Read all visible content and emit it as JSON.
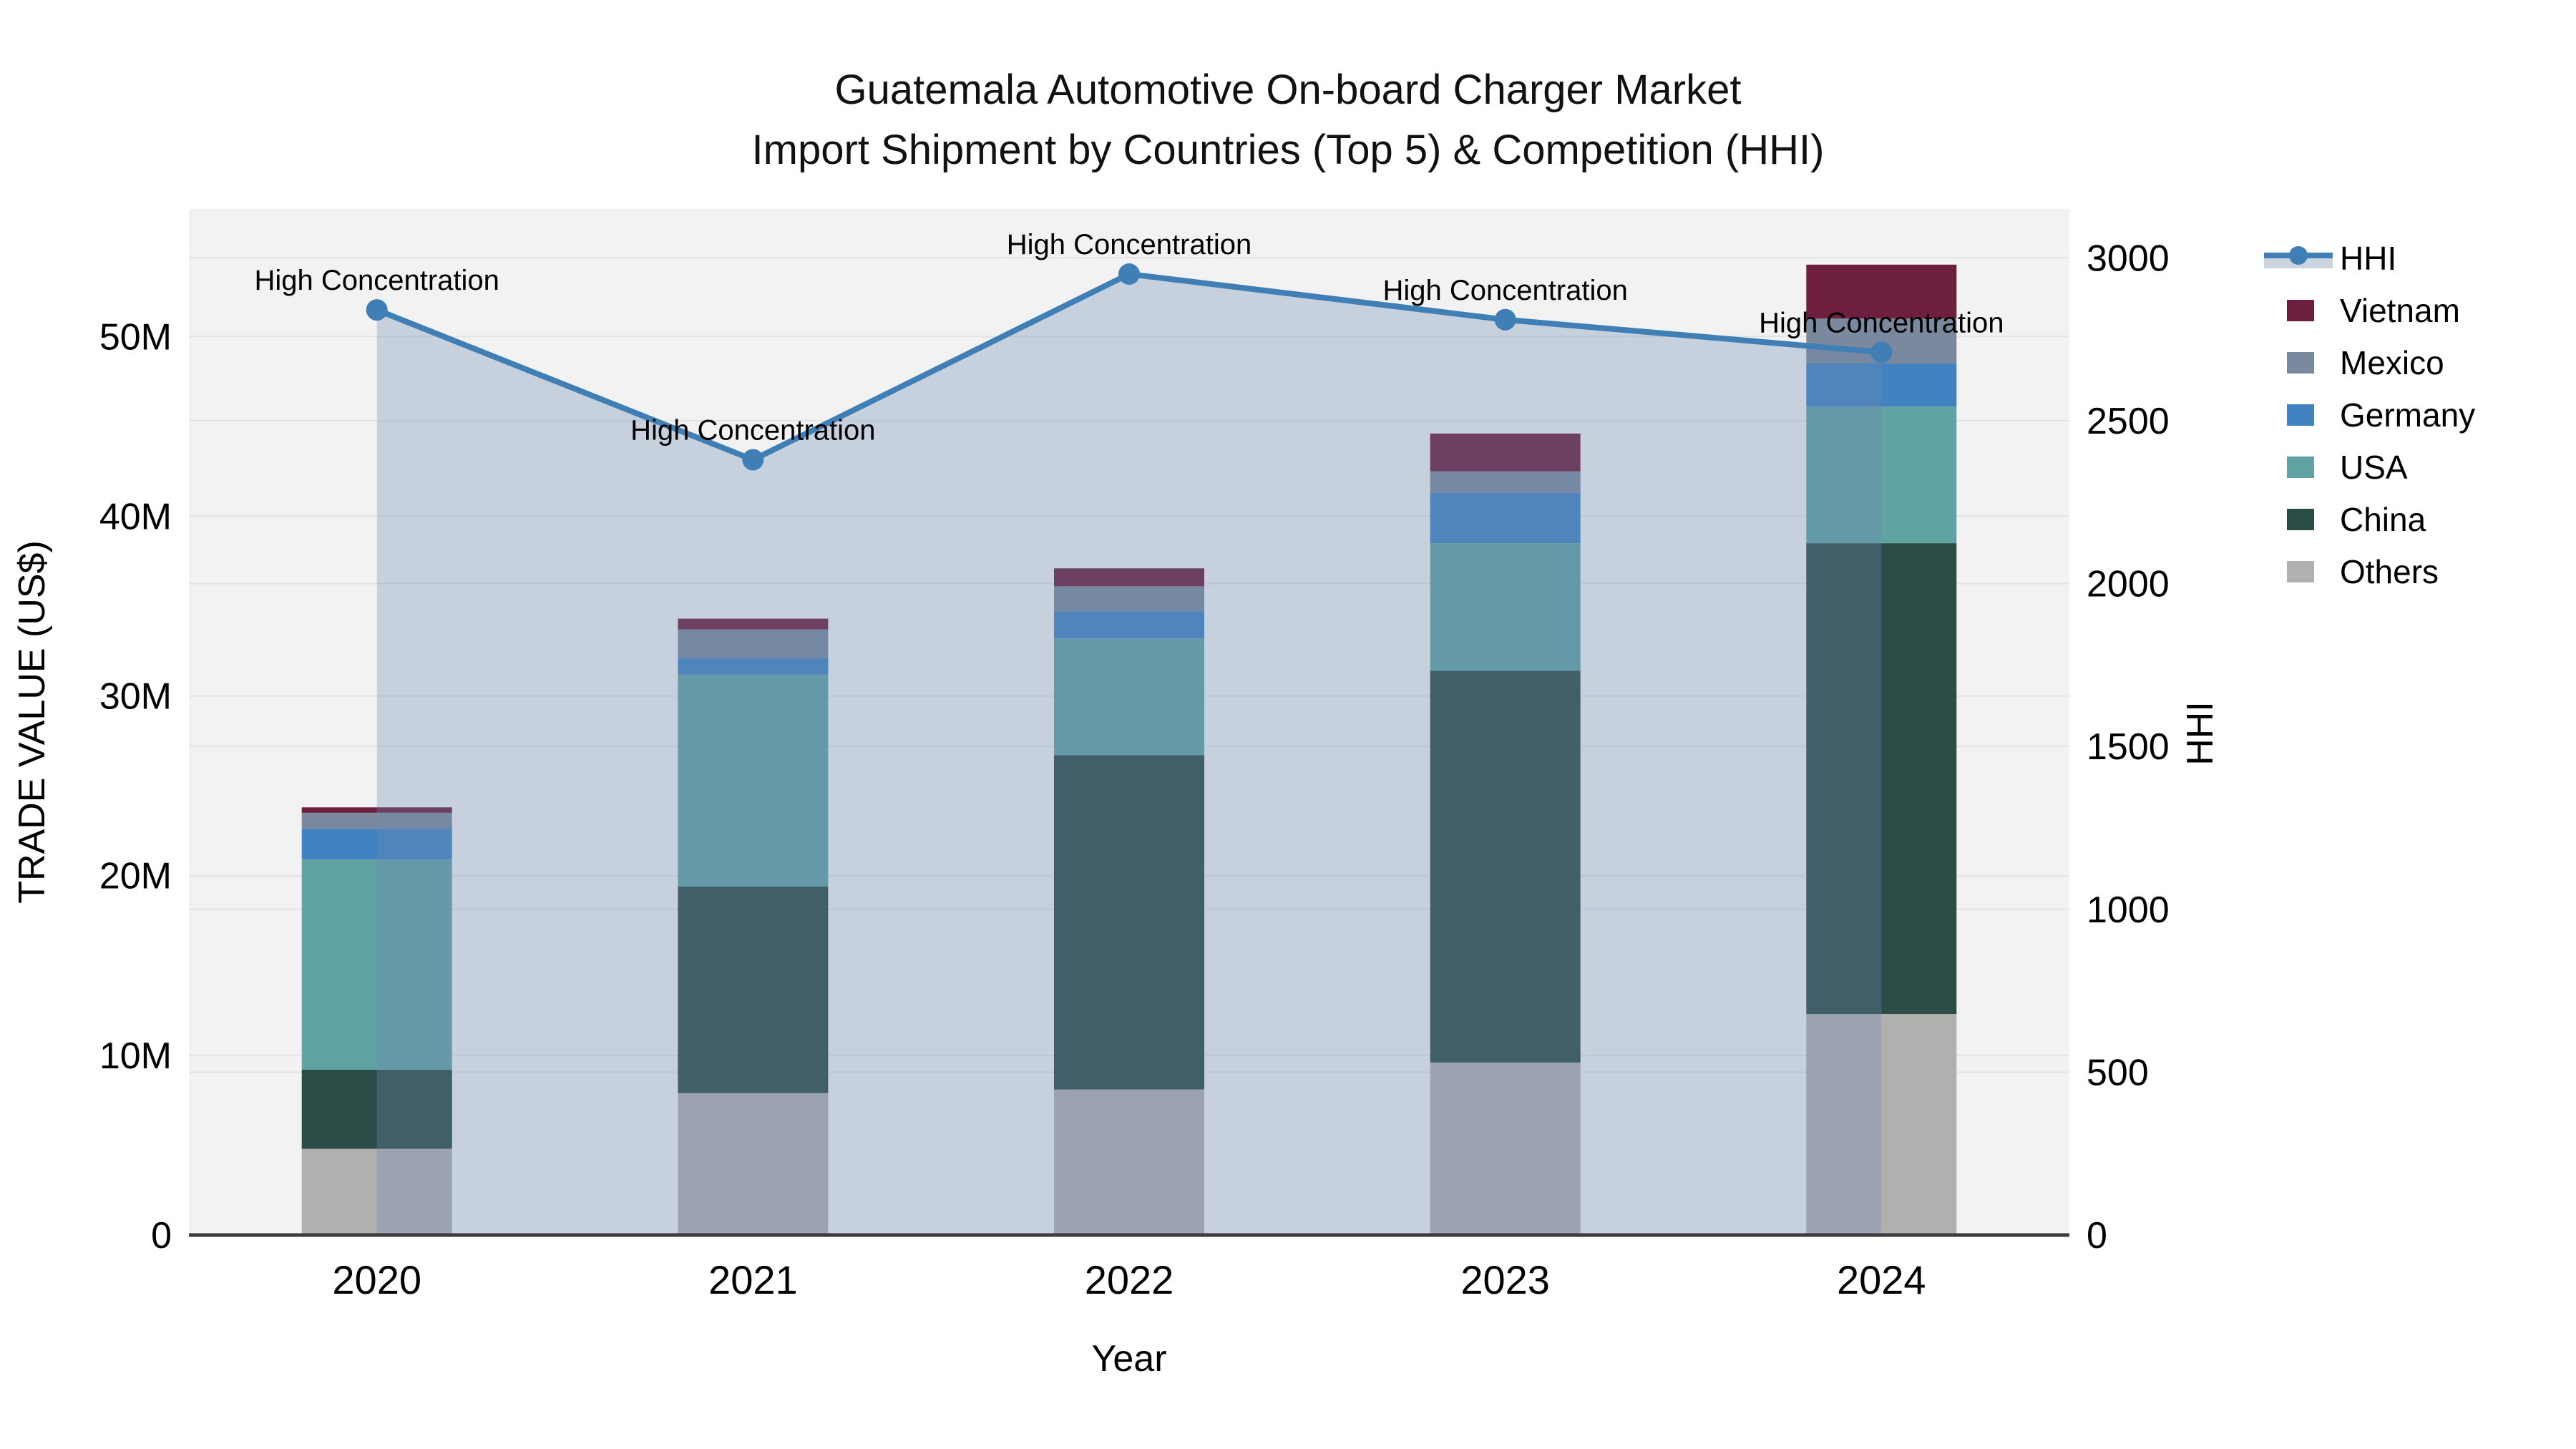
{
  "header": {
    "title_line1": "Guatemala Automotive On-board Charger Market",
    "title_line2": "Import Shipment by Countries (Top 5) & Competition (HHI)"
  },
  "chart_data": {
    "type": "bar+line",
    "title": "Guatemala Automotive On-board Charger Market Import Shipment by Countries (Top 5) & Competition (HHI)",
    "categories": [
      "2020",
      "2021",
      "2022",
      "2023",
      "2024"
    ],
    "xlabel": "Year",
    "left_axis": {
      "label": "TRADE VALUE (US$)",
      "unit": "M US$",
      "max": 57.1,
      "ticks": [
        {
          "v": 0,
          "label": "0"
        },
        {
          "v": 10,
          "label": "10M"
        },
        {
          "v": 20,
          "label": "20M"
        },
        {
          "v": 30,
          "label": "30M"
        },
        {
          "v": 40,
          "label": "40M"
        },
        {
          "v": 50,
          "label": "50M"
        }
      ]
    },
    "right_axis": {
      "label": "HHI",
      "max": 3150,
      "ticks": [
        {
          "v": 0,
          "label": "0"
        },
        {
          "v": 500,
          "label": "500"
        },
        {
          "v": 1000,
          "label": "1000"
        },
        {
          "v": 1500,
          "label": "1500"
        },
        {
          "v": 2000,
          "label": "2000"
        },
        {
          "v": 2500,
          "label": "2500"
        },
        {
          "v": 3000,
          "label": "3000"
        }
      ]
    },
    "bar_series_bottom_to_top": [
      {
        "name": "Others",
        "color": "#b0b0ae",
        "values": [
          4.8,
          7.9,
          8.1,
          9.6,
          12.3
        ]
      },
      {
        "name": "China",
        "color": "#2c4c47",
        "values": [
          4.4,
          11.5,
          18.6,
          21.8,
          26.2
        ]
      },
      {
        "name": "USA",
        "color": "#61a3a2",
        "values": [
          11.7,
          11.8,
          6.5,
          7.1,
          7.6
        ]
      },
      {
        "name": "Germany",
        "color": "#4182c1",
        "values": [
          1.7,
          0.9,
          1.5,
          2.8,
          2.4
        ]
      },
      {
        "name": "Mexico",
        "color": "#7a899d",
        "values": [
          0.9,
          1.6,
          1.4,
          1.2,
          2.5
        ]
      },
      {
        "name": "Vietnam",
        "color": "#6e1e3e",
        "values": [
          0.3,
          0.6,
          1.0,
          2.1,
          3.0
        ]
      }
    ],
    "bar_totals": [
      23.8,
      34.3,
      37.1,
      44.6,
      54.0
    ],
    "line_series": {
      "name": "HHI",
      "color": "#3f7fb5",
      "fill_color": "rgba(110,136,178,0.32)",
      "axis": "right",
      "values": [
        2840,
        2380,
        2950,
        2810,
        2710
      ]
    },
    "annotation_label": "High Concentration",
    "annotations_per_point": [
      true,
      true,
      true,
      true,
      true
    ],
    "legend_order": [
      "HHI",
      "Vietnam",
      "Mexico",
      "Germany",
      "USA",
      "China",
      "Others"
    ],
    "legend_position": "right",
    "grid": true
  },
  "colors": {
    "plot_background": "#f2f2f2",
    "grid_line": "#e3e3e3",
    "axis_line": "#3b3b3b",
    "text": "#000000"
  }
}
